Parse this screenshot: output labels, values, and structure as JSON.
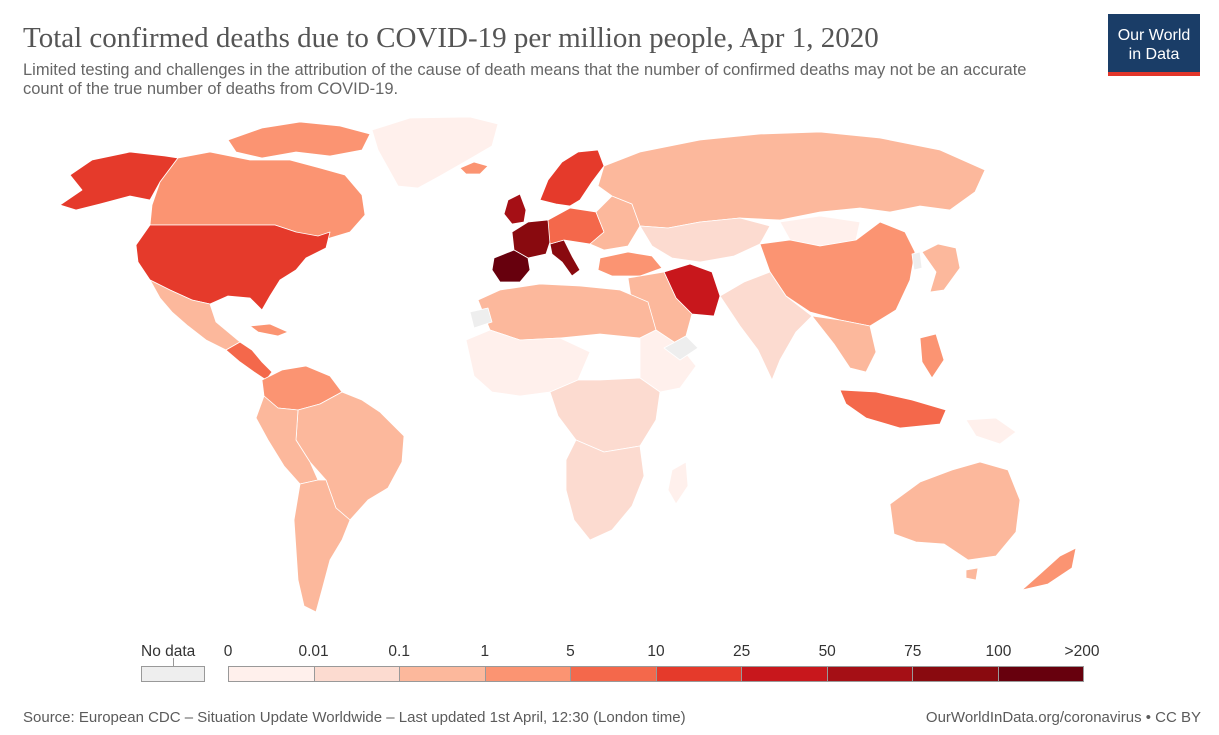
{
  "header": {
    "title": "Total confirmed deaths due to COVID-19 per million people, Apr 1, 2020",
    "subtitle": "Limited testing and challenges in the attribution of the cause of death means that the number of confirmed deaths may not be an accurate count of the true number of deaths from COVID-19.",
    "logo_line1": "Our World",
    "logo_line2": "in Data"
  },
  "legend": {
    "no_data_label": "No data",
    "no_data_color": "#eeeeee",
    "tick_labels": [
      "0",
      "0.01",
      "0.1",
      "1",
      "5",
      "10",
      "25",
      "50",
      "75",
      "100",
      ">200"
    ],
    "bin_colors": [
      "#fff0ec",
      "#fcdbd0",
      "#fcb89c",
      "#fb9472",
      "#f4684b",
      "#e53a2b",
      "#c8171c",
      "#a50f15",
      "#890a0f",
      "#67000d"
    ]
  },
  "footer": {
    "source": "Source: European CDC – Situation Update Worldwide – Last updated 1st April, 12:30 (London time)",
    "url": "OurWorldInData.org/coronavirus • CC BY"
  }
}
